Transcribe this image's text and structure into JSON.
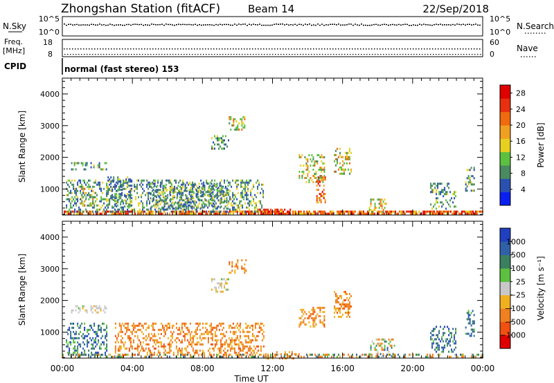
{
  "header": {
    "station": "Zhongshan Station (fitACF)",
    "beam": "Beam 14",
    "date": "22/Sep/2018"
  },
  "panels": {
    "nsky": {
      "left_label": "N.Sky",
      "left_ticks": [
        "10^5",
        "10^0"
      ],
      "right_ticks": [
        "10^5",
        "10^0"
      ],
      "right_label": "N.Search"
    },
    "freq": {
      "left_label_top": "Freq.",
      "left_label_bottom": "[MHz]",
      "left_ticks": [
        "18",
        "8"
      ],
      "right_ticks": [
        "60",
        "0"
      ],
      "right_label": "Nave"
    },
    "cpid": {
      "label": "CPID",
      "text": "normal (fast stereo) 153"
    }
  },
  "chart_data": [
    {
      "type": "heatmap",
      "title": "",
      "quantity": "Power",
      "xlabel": "Time UT",
      "ylabel": "Slant Range [km]",
      "xlim": [
        0,
        24
      ],
      "ylim": [
        180,
        4500
      ],
      "x_tick_labels": [
        "00:00",
        "04:00",
        "08:00",
        "12:00",
        "16:00",
        "20:00",
        "00:00"
      ],
      "y_ticks": [
        1000,
        2000,
        3000,
        4000
      ],
      "colorbar": {
        "label": "Power [dB]",
        "ticks": [
          4,
          8,
          12,
          16,
          20,
          24,
          28
        ],
        "range": [
          0,
          30
        ],
        "colors": [
          "#0a20f0",
          "#2a50b0",
          "#4a8a60",
          "#5cc040",
          "#e8d020",
          "#f0a020",
          "#f06a10",
          "#e83010",
          "#e00000"
        ]
      },
      "echo_regions": [
        {
          "t": [
            0.0,
            24.0
          ],
          "r": [
            200,
            320
          ],
          "level": "high",
          "note": "near-range band"
        },
        {
          "t": [
            0.2,
            11.5
          ],
          "r": [
            300,
            1300
          ],
          "level": "low"
        },
        {
          "t": [
            0.5,
            2.5
          ],
          "r": [
            1600,
            1850
          ],
          "level": "low"
        },
        {
          "t": [
            1.0,
            1.8
          ],
          "r": [
            500,
            1100
          ],
          "level": "medium"
        },
        {
          "t": [
            2.5,
            4.0
          ],
          "r": [
            450,
            1400
          ],
          "level": "low"
        },
        {
          "t": [
            5.0,
            9.5
          ],
          "r": [
            400,
            1200
          ],
          "level": "low"
        },
        {
          "t": [
            8.5,
            9.5
          ],
          "r": [
            2300,
            2700
          ],
          "level": "low"
        },
        {
          "t": [
            9.5,
            10.5
          ],
          "r": [
            2900,
            3300
          ],
          "level": "medium"
        },
        {
          "t": [
            11.0,
            13.0
          ],
          "r": [
            200,
            380
          ],
          "level": "very-high"
        },
        {
          "t": [
            13.5,
            15.0
          ],
          "r": [
            1200,
            2100
          ],
          "level": "medium"
        },
        {
          "t": [
            14.5,
            15.0
          ],
          "r": [
            600,
            1400
          ],
          "level": "high"
        },
        {
          "t": [
            15.5,
            16.5
          ],
          "r": [
            1500,
            2300
          ],
          "level": "medium"
        },
        {
          "t": [
            17.5,
            18.5
          ],
          "r": [
            250,
            700
          ],
          "level": "medium"
        },
        {
          "t": [
            21.0,
            22.5
          ],
          "r": [
            400,
            1200
          ],
          "level": "low"
        },
        {
          "t": [
            23.0,
            23.5
          ],
          "r": [
            900,
            1700
          ],
          "level": "low"
        }
      ]
    },
    {
      "type": "heatmap",
      "title": "",
      "quantity": "Velocity",
      "xlabel": "Time UT",
      "ylabel": "Slant Range [km]",
      "xlim": [
        0,
        24
      ],
      "ylim": [
        180,
        4500
      ],
      "x_tick_labels": [
        "00:00",
        "04:00",
        "08:00",
        "12:00",
        "16:00",
        "20:00",
        "00:00"
      ],
      "y_ticks": [
        1000,
        2000,
        3000,
        4000
      ],
      "colorbar": {
        "label": "Velocity [m s⁻¹]",
        "ticks": [
          "1000",
          "500",
          "100",
          "25",
          "−25",
          "−100",
          "−500",
          "−1000"
        ],
        "colors": [
          "#2040c0",
          "#3060a8",
          "#3a8060",
          "#5cc040",
          "#c8c8c8",
          "#f0b020",
          "#f08020",
          "#f05010",
          "#e00000"
        ]
      },
      "echo_regions": [
        {
          "t": [
            0.0,
            24.0
          ],
          "r": [
            200,
            320
          ],
          "level": "mixed"
        },
        {
          "t": [
            0.2,
            2.5
          ],
          "r": [
            300,
            1300
          ],
          "level": "positive"
        },
        {
          "t": [
            0.5,
            2.5
          ],
          "r": [
            1600,
            1850
          ],
          "level": "near-zero"
        },
        {
          "t": [
            3.0,
            11.5
          ],
          "r": [
            300,
            1300
          ],
          "level": "negative"
        },
        {
          "t": [
            8.5,
            9.5
          ],
          "r": [
            2300,
            2700
          ],
          "level": "near-zero"
        },
        {
          "t": [
            9.5,
            10.5
          ],
          "r": [
            2900,
            3300
          ],
          "level": "negative"
        },
        {
          "t": [
            11.5,
            13.5
          ],
          "r": [
            200,
            400
          ],
          "level": "negative"
        },
        {
          "t": [
            13.5,
            15.0
          ],
          "r": [
            1200,
            1800
          ],
          "level": "negative"
        },
        {
          "t": [
            15.5,
            16.5
          ],
          "r": [
            1500,
            2300
          ],
          "level": "negative"
        },
        {
          "t": [
            17.5,
            19.0
          ],
          "r": [
            250,
            800
          ],
          "level": "mixed"
        },
        {
          "t": [
            21.0,
            22.5
          ],
          "r": [
            400,
            1200
          ],
          "level": "positive"
        },
        {
          "t": [
            23.0,
            23.5
          ],
          "r": [
            900,
            1700
          ],
          "level": "positive"
        }
      ]
    }
  ]
}
